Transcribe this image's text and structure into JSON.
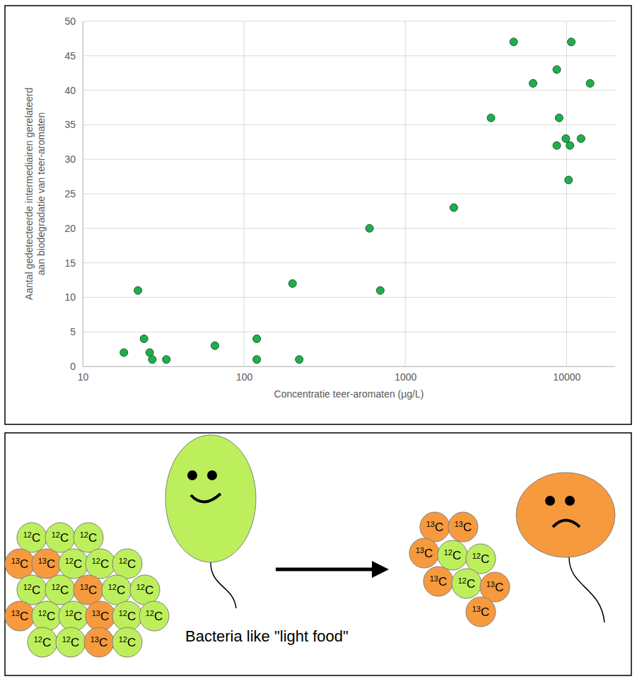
{
  "chart_data": {
    "type": "scatter",
    "xlabel": "Concentratie teer-aromaten (µg/L)",
    "ylabel": "Aantal gedetecteerde intermediairen gerelateerd aan biodegradatie van teer-aromaten",
    "x": [
      18,
      22,
      24,
      26,
      27,
      33,
      66,
      120,
      120,
      200,
      220,
      600,
      700,
      2000,
      3400,
      4700,
      6200,
      8700,
      8700,
      9000,
      9900,
      10500,
      10300,
      10700,
      12300,
      14000
    ],
    "values": [
      2,
      11,
      4,
      2,
      1,
      1,
      3,
      4,
      1,
      12,
      1,
      20,
      11,
      23,
      36,
      47,
      41,
      43,
      32,
      36,
      33,
      32,
      27,
      47,
      33,
      41
    ],
    "color": "#1fae4e",
    "marker": "circle",
    "log": "x",
    "grid": true,
    "xlim": [
      10,
      20000
    ],
    "xticks": [
      10,
      100,
      1000,
      10000
    ],
    "ylim": [
      0,
      50
    ],
    "yticks": [
      0,
      5,
      10,
      15,
      20,
      25,
      30,
      35,
      40,
      45,
      50
    ]
  },
  "diagram": {
    "caption": "Bacteria like \"light food\"",
    "light_isotope": {
      "mass": "12",
      "element": "C"
    },
    "heavy_isotope": {
      "mass": "13",
      "element": "C"
    }
  }
}
